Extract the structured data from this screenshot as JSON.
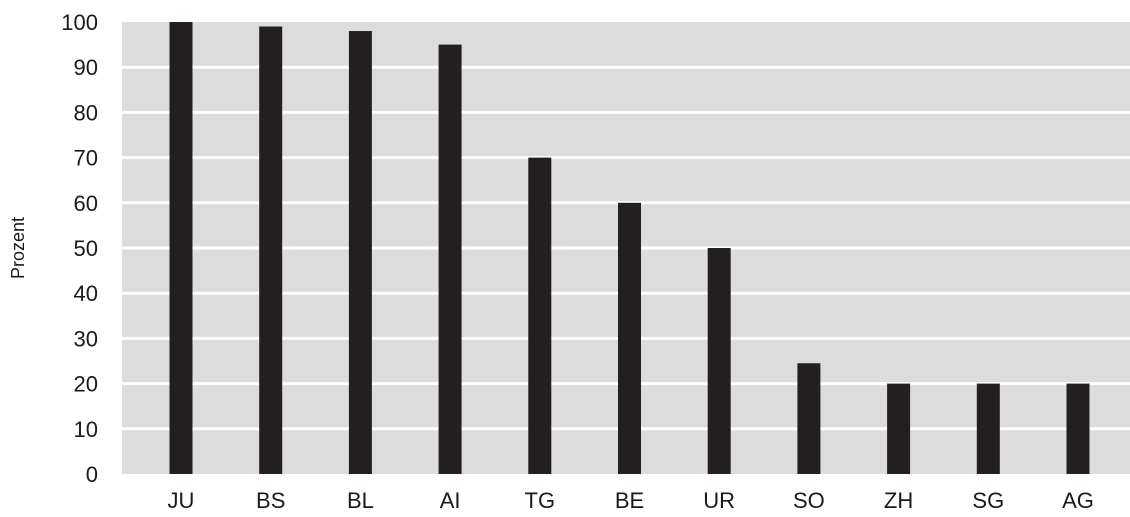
{
  "chart_data": {
    "type": "bar",
    "title": "",
    "xlabel": "",
    "ylabel": "Prozent",
    "categories": [
      "JU",
      "BS",
      "BL",
      "AI",
      "TG",
      "BE",
      "UR",
      "SO",
      "ZH",
      "SG",
      "AG"
    ],
    "values": [
      100,
      99,
      98,
      95,
      70,
      60,
      50,
      24.5,
      20,
      20,
      20
    ],
    "ylim": [
      0,
      100
    ],
    "yticks": [
      0,
      10,
      20,
      30,
      40,
      50,
      60,
      70,
      80,
      90,
      100
    ],
    "grid": true,
    "legend": "none",
    "colors": {
      "plot_background": "#dcdcdc",
      "gridline": "#ffffff",
      "bar": "#231f20",
      "text": "#1a1a1a"
    }
  }
}
